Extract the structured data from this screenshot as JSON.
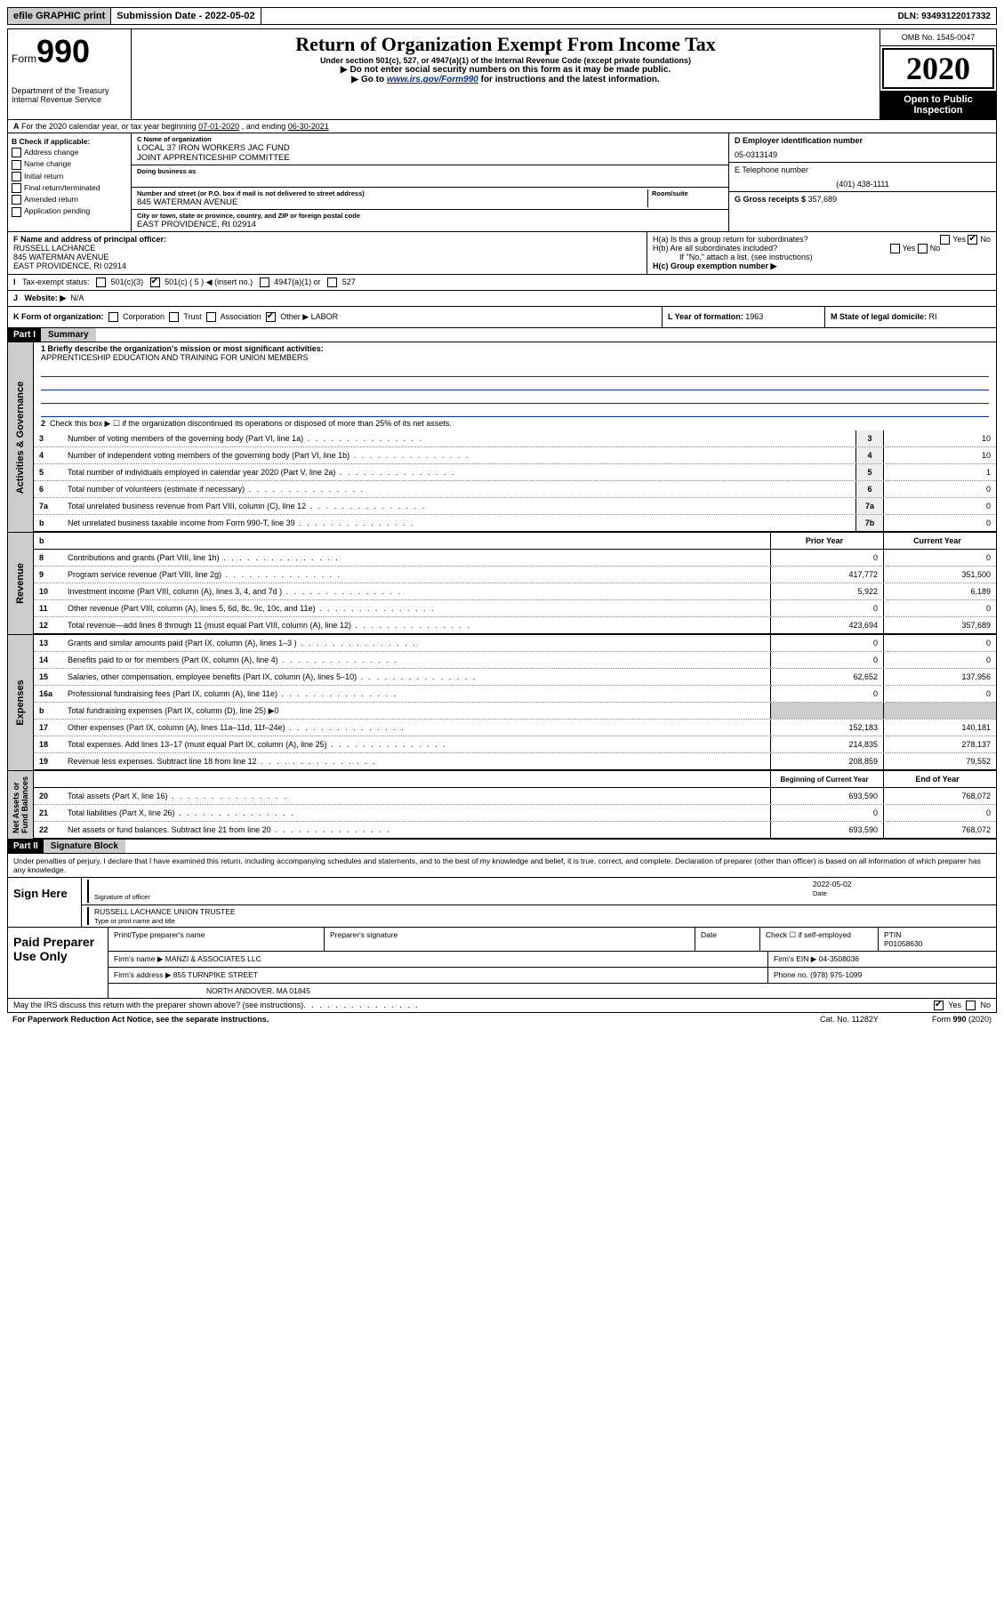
{
  "topbar": {
    "efile": "efile GRAPHIC print",
    "subdate_label": "Submission Date - ",
    "subdate": "2022-05-02",
    "dln_label": "DLN: ",
    "dln": "93493122017332"
  },
  "header": {
    "form": "Form",
    "num": "990",
    "dept": "Department of the Treasury\nInternal Revenue Service",
    "title": "Return of Organization Exempt From Income Tax",
    "sub1": "Under section 501(c), 527, or 4947(a)(1) of the Internal Revenue Code (except private foundations)",
    "sub2": "Do not enter social security numbers on this form as it may be made public.",
    "sub3_pre": "Go to ",
    "sub3_link": "www.irs.gov/Form990",
    "sub3_post": " for instructions and the latest information.",
    "omb": "OMB No. 1545-0047",
    "year": "2020",
    "open": "Open to Public Inspection"
  },
  "rowA": {
    "text_pre": "For the 2020 calendar year, or tax year beginning ",
    "begin": "07-01-2020",
    "mid": " , and ending ",
    "end": "06-30-2021"
  },
  "B": {
    "label": "B Check if applicable:",
    "opts": [
      "Address change",
      "Name change",
      "Initial return",
      "Final return/terminated",
      "Amended return",
      "Application pending"
    ]
  },
  "C": {
    "name_lbl": "C Name of organization",
    "name1": "LOCAL 37 IRON WORKERS JAC FUND",
    "name2": "JOINT APPRENTICESHIP COMMITTEE",
    "dba_lbl": "Doing business as",
    "addr_lbl": "Number and street (or P.O. box if mail is not delivered to street address)",
    "room_lbl": "Room/suite",
    "addr": "845 WATERMAN AVENUE",
    "city_lbl": "City or town, state or province, country, and ZIP or foreign postal code",
    "city": "EAST PROVIDENCE, RI  02914"
  },
  "D": {
    "ein_lbl": "D Employer identification number",
    "ein": "05-0313149",
    "phone_lbl": "E Telephone number",
    "phone": "(401) 438-1111",
    "gross_lbl": "G Gross receipts $ ",
    "gross": "357,689"
  },
  "F": {
    "lbl": "F Name and address of principal officer:",
    "name": "RUSSELL LACHANCE",
    "addr1": "845 WATERMAN AVENUE",
    "addr2": "EAST PROVIDENCE, RI  02914"
  },
  "H": {
    "a": "H(a)  Is this a group return for subordinates?",
    "b": "H(b)  Are all subordinates included?",
    "b2": "If \"No,\" attach a list. (see instructions)",
    "c": "H(c)  Group exemption number ▶"
  },
  "I": {
    "lbl": "Tax-exempt status:",
    "opts": [
      "501(c)(3)",
      "501(c) ( 5 ) ◀ (insert no.)",
      "4947(a)(1) or",
      "527"
    ]
  },
  "J": {
    "lbl": "Website: ▶",
    "val": "N/A"
  },
  "K": {
    "lbl": "K Form of organization:",
    "opts": [
      "Corporation",
      "Trust",
      "Association",
      "Other ▶"
    ],
    "other": "LABOR",
    "L_lbl": "L Year of formation: ",
    "L_val": "1963",
    "M_lbl": "M State of legal domicile: ",
    "M_val": "RI"
  },
  "part1": {
    "label": "Part I",
    "summary": "Summary",
    "q1_lbl": "1  Briefly describe the organization's mission or most significant activities:",
    "q1_val": "APPRENTICESHIP EDUCATION AND TRAINING FOR UNION MEMBERS",
    "q2": "Check this box ▶ ☐  if the organization discontinued its operations or disposed of more than 25% of its net assets."
  },
  "gov_lines": [
    {
      "n": "3",
      "d": "Number of voting members of the governing body (Part VI, line 1a)",
      "c": "3",
      "v": "10"
    },
    {
      "n": "4",
      "d": "Number of independent voting members of the governing body (Part VI, line 1b)",
      "c": "4",
      "v": "10"
    },
    {
      "n": "5",
      "d": "Total number of individuals employed in calendar year 2020 (Part V, line 2a)",
      "c": "5",
      "v": "1"
    },
    {
      "n": "6",
      "d": "Total number of volunteers (estimate if necessary)",
      "c": "6",
      "v": "0"
    },
    {
      "n": "7a",
      "d": "Total unrelated business revenue from Part VIII, column (C), line 12",
      "c": "7a",
      "v": "0"
    },
    {
      "n": "b",
      "d": "Net unrelated business taxable income from Form 990-T, line 39",
      "c": "7b",
      "v": "0"
    }
  ],
  "rev_header": {
    "prior": "Prior Year",
    "curr": "Current Year"
  },
  "rev_lines": [
    {
      "n": "8",
      "d": "Contributions and grants (Part VIII, line 1h)",
      "p": "0",
      "c": "0"
    },
    {
      "n": "9",
      "d": "Program service revenue (Part VIII, line 2g)",
      "p": "417,772",
      "c": "351,500"
    },
    {
      "n": "10",
      "d": "Investment income (Part VIII, column (A), lines 3, 4, and 7d )",
      "p": "5,922",
      "c": "6,189"
    },
    {
      "n": "11",
      "d": "Other revenue (Part VIII, column (A), lines 5, 6d, 8c, 9c, 10c, and 11e)",
      "p": "0",
      "c": "0"
    },
    {
      "n": "12",
      "d": "Total revenue—add lines 8 through 11 (must equal Part VIII, column (A), line 12)",
      "p": "423,694",
      "c": "357,689"
    }
  ],
  "exp_lines": [
    {
      "n": "13",
      "d": "Grants and similar amounts paid (Part IX, column (A), lines 1–3 )",
      "p": "0",
      "c": "0"
    },
    {
      "n": "14",
      "d": "Benefits paid to or for members (Part IX, column (A), line 4)",
      "p": "0",
      "c": "0"
    },
    {
      "n": "15",
      "d": "Salaries, other compensation, employee benefits (Part IX, column (A), lines 5–10)",
      "p": "62,652",
      "c": "137,956"
    },
    {
      "n": "16a",
      "d": "Professional fundraising fees (Part IX, column (A), line 11e)",
      "p": "0",
      "c": "0"
    },
    {
      "n": "b",
      "d": "Total fundraising expenses (Part IX, column (D), line 25) ▶0",
      "p": "",
      "c": "",
      "shade": true
    },
    {
      "n": "17",
      "d": "Other expenses (Part IX, column (A), lines 11a–11d, 11f–24e)",
      "p": "152,183",
      "c": "140,181"
    },
    {
      "n": "18",
      "d": "Total expenses. Add lines 13–17 (must equal Part IX, column (A), line 25)",
      "p": "214,835",
      "c": "278,137"
    },
    {
      "n": "19",
      "d": "Revenue less expenses. Subtract line 18 from line 12",
      "p": "208,859",
      "c": "79,552"
    }
  ],
  "na_header": {
    "prior": "Beginning of Current Year",
    "curr": "End of Year"
  },
  "na_lines": [
    {
      "n": "20",
      "d": "Total assets (Part X, line 16)",
      "p": "693,590",
      "c": "768,072"
    },
    {
      "n": "21",
      "d": "Total liabilities (Part X, line 26)",
      "p": "0",
      "c": "0"
    },
    {
      "n": "22",
      "d": "Net assets or fund balances. Subtract line 21 from line 20",
      "p": "693,590",
      "c": "768,072"
    }
  ],
  "part2": {
    "label": "Part II",
    "title": "Signature Block",
    "decl": "Under penalties of perjury, I declare that I have examined this return, including accompanying schedules and statements, and to the best of my knowledge and belief, it is true, correct, and complete. Declaration of preparer (other than officer) is based on all information of which preparer has any knowledge."
  },
  "sign": {
    "here": "Sign Here",
    "sig_lbl": "Signature of officer",
    "date_lbl": "Date",
    "date": "2022-05-02",
    "name": "RUSSELL LACHANCE  UNION TRUSTEE",
    "name_lbl": "Type or print name and title"
  },
  "paid": {
    "label": "Paid Preparer Use Only",
    "h1": "Print/Type preparer's name",
    "h2": "Preparer's signature",
    "h3": "Date",
    "h4_pre": "Check ☐ if self-employed",
    "h5_lbl": "PTIN",
    "h5": "P01058630",
    "firm_lbl": "Firm's name    ▶ ",
    "firm": "MANZI & ASSOCIATES LLC",
    "ein_lbl": "Firm's EIN ▶ ",
    "ein": "04-3508036",
    "addr_lbl": "Firm's address ▶ ",
    "addr1": "855 TURNPIKE STREET",
    "addr2": "NORTH ANDOVER, MA  01845",
    "phone_lbl": "Phone no. ",
    "phone": "(978) 975-1099",
    "discuss": "May the IRS discuss this return with the preparer shown above? (see instructions)"
  },
  "footer": {
    "notice": "For Paperwork Reduction Act Notice, see the separate instructions.",
    "cat": "Cat. No. 11282Y",
    "form": "Form 990 (2020)"
  },
  "colors": {
    "link": "#003399",
    "shade": "#cccccc",
    "black": "#000000",
    "white": "#ffffff"
  }
}
